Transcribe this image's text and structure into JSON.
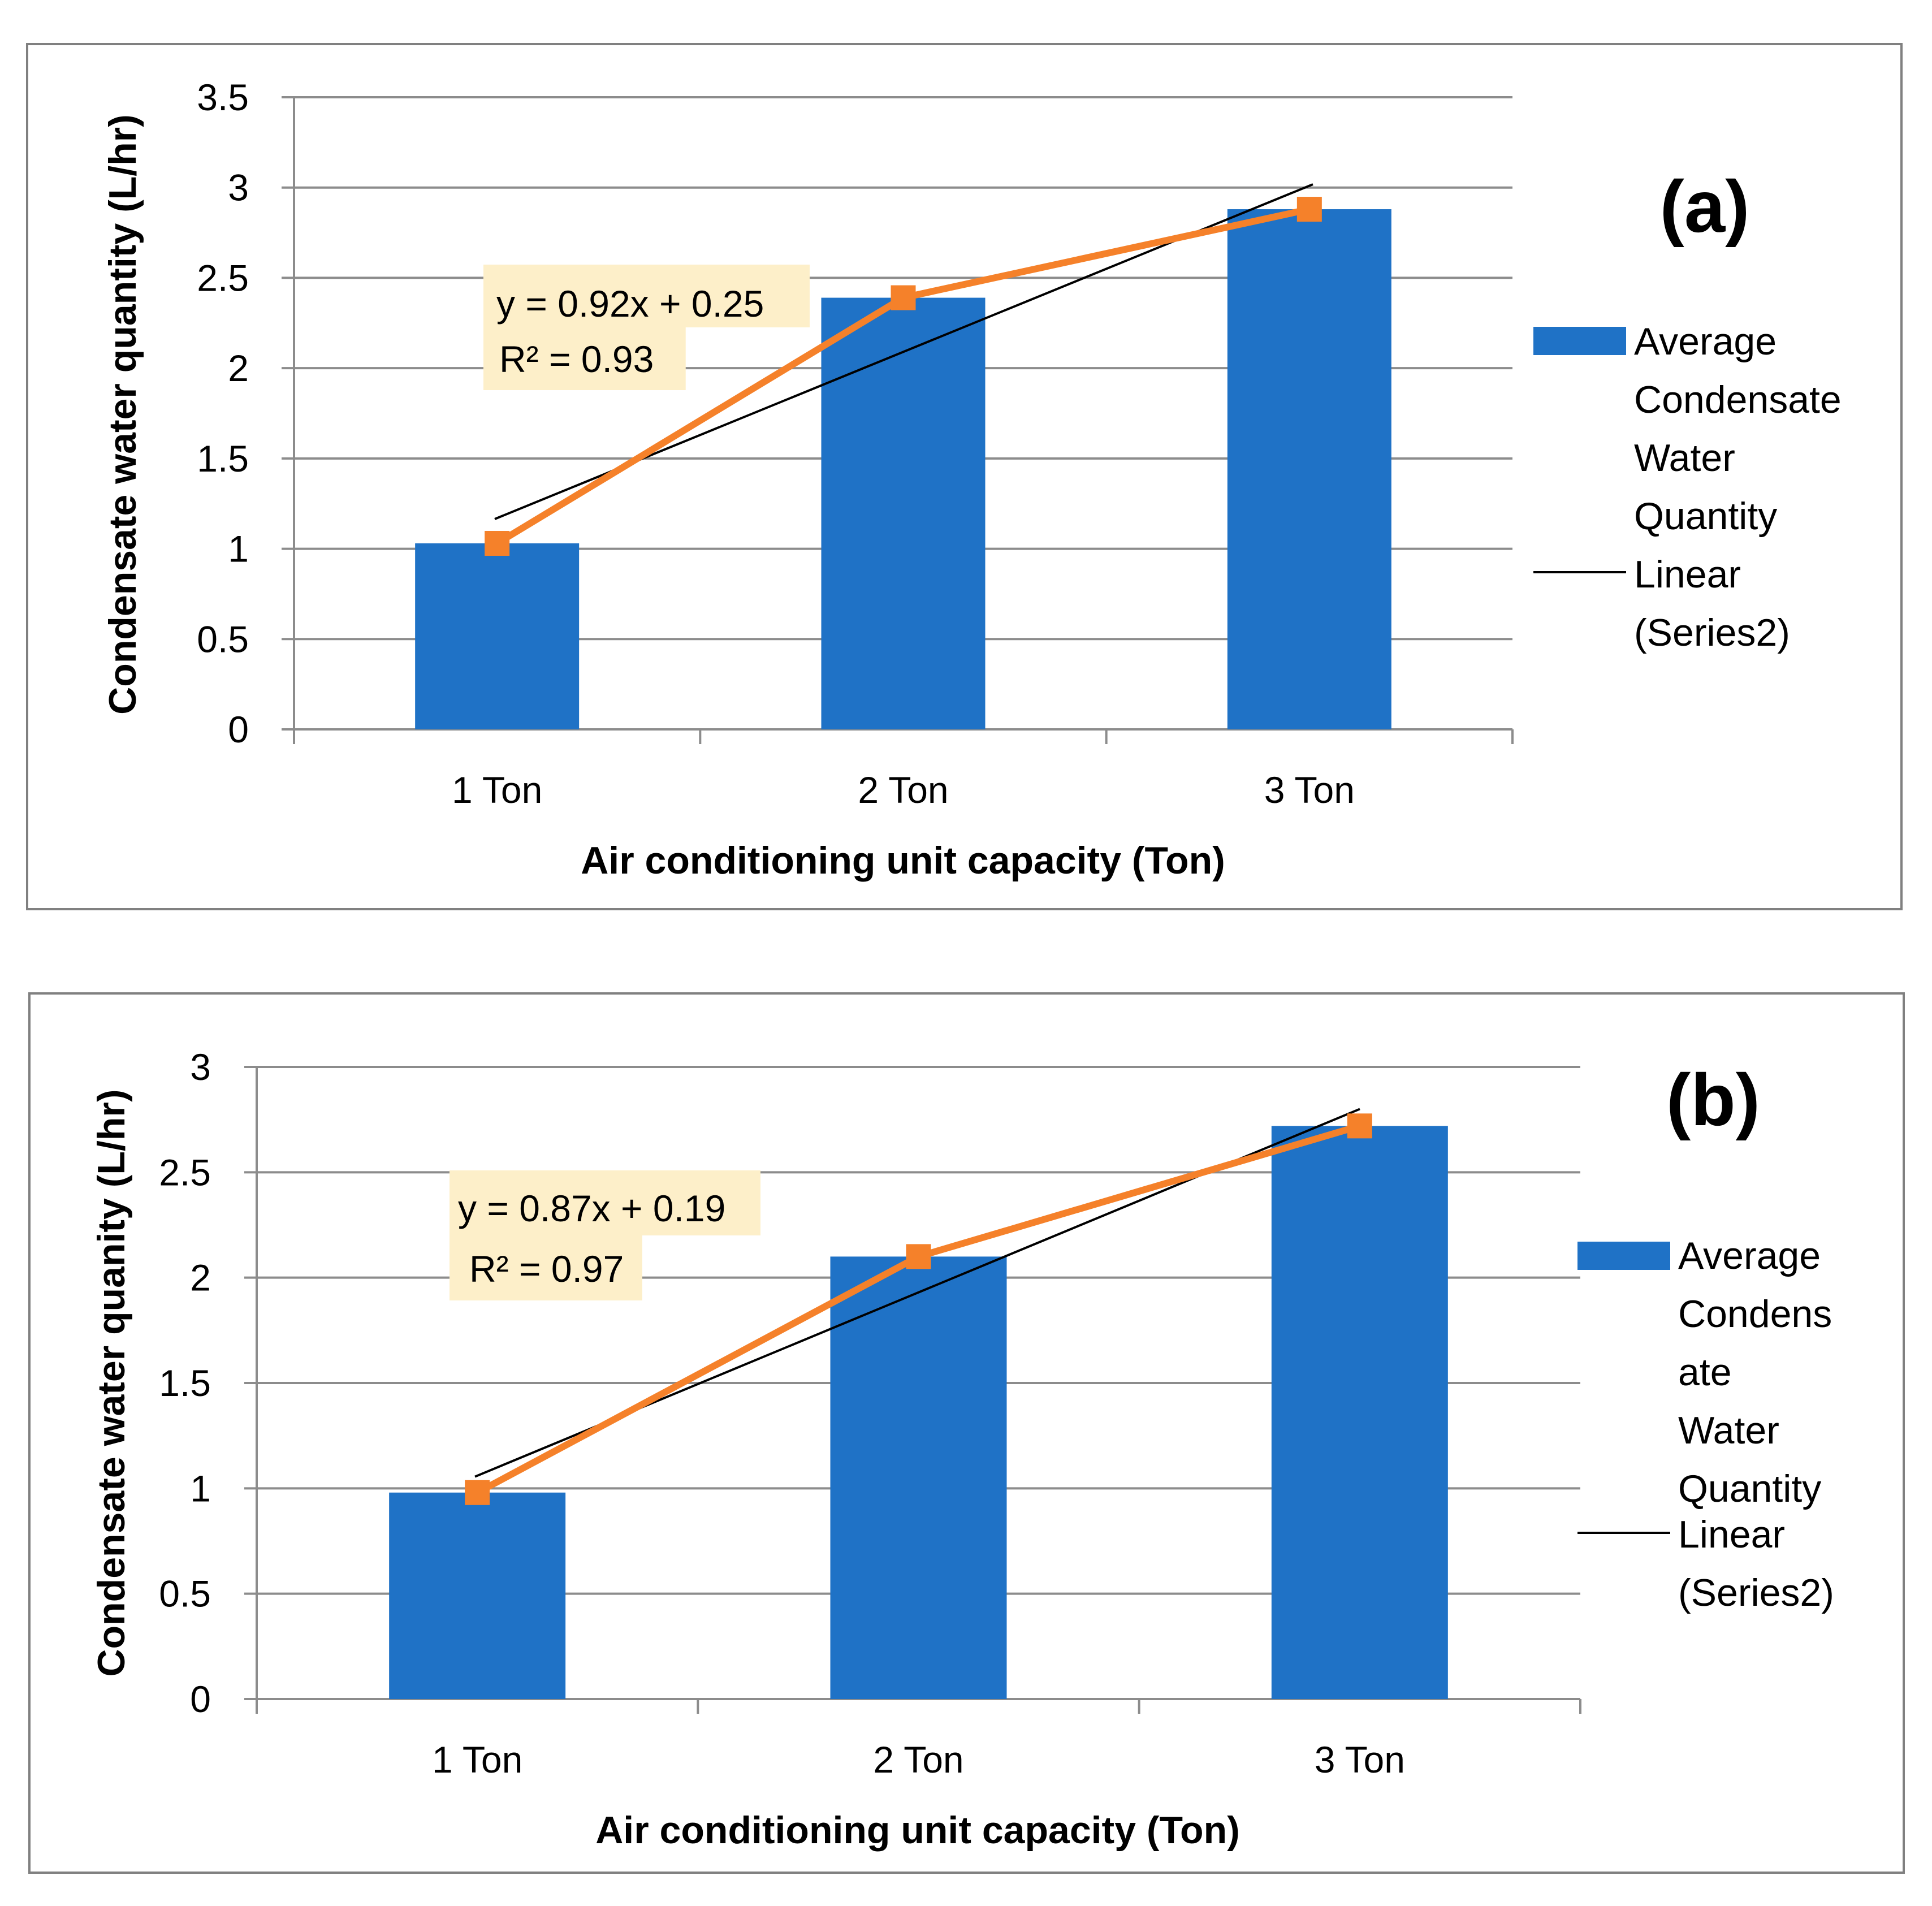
{
  "chart_data": [
    {
      "type": "bar",
      "panel_label": "(a)",
      "categories": [
        "1 Ton",
        "2 Ton",
        "3 Ton"
      ],
      "series": [
        {
          "name": "Average Condensate Water Quantity",
          "kind": "bar",
          "values": [
            1.03,
            2.39,
            2.88
          ],
          "color": "#1F72C6"
        },
        {
          "name": "Series2",
          "kind": "line-markers",
          "values": [
            1.03,
            2.39,
            2.88
          ],
          "color": "#F5812A"
        }
      ],
      "trendline": {
        "name": "Linear (Series2)",
        "slope": 0.92,
        "intercept": 0.25,
        "color": "#000000"
      },
      "equation": {
        "line1": "y = 0.92x + 0.25",
        "line2": "R² = 0.93"
      },
      "xlabel": "Air conditioning unit capacity (Ton)",
      "ylabel": "Condensate water quantity (L/hr)",
      "ylim": [
        0,
        3.5
      ],
      "ystep": 0.5,
      "yticks": [
        "0",
        "0.5",
        "1",
        "1.5",
        "2",
        "2.5",
        "3",
        "3.5"
      ],
      "legend": {
        "position": "right",
        "bar_label_lines": [
          "Average",
          "Condensate",
          "Water",
          "Quantity"
        ],
        "line_label_lines": [
          "Linear",
          "(Series2)"
        ]
      },
      "grid": true
    },
    {
      "type": "bar",
      "panel_label": "(b)",
      "categories": [
        "1 Ton",
        "2 Ton",
        "3 Ton"
      ],
      "series": [
        {
          "name": "Average Condensate Water Quantity",
          "kind": "bar",
          "values": [
            0.98,
            2.1,
            2.72
          ],
          "color": "#1F72C6"
        },
        {
          "name": "Series2",
          "kind": "line-markers",
          "values": [
            0.98,
            2.1,
            2.72
          ],
          "color": "#F5812A"
        }
      ],
      "trendline": {
        "name": "Linear (Series2)",
        "slope": 0.87,
        "intercept": 0.19,
        "color": "#000000"
      },
      "equation": {
        "line1": "y = 0.87x + 0.19",
        "line2": "R² = 0.97"
      },
      "xlabel": "Air conditioning unit capacity (Ton)",
      "ylabel": "Condensate water quanity (L/hr)",
      "ylim": [
        0,
        3
      ],
      "ystep": 0.5,
      "yticks": [
        "0",
        "0.5",
        "1",
        "1.5",
        "2",
        "2.5",
        "3"
      ],
      "legend": {
        "position": "right",
        "bar_label_lines": [
          "Average",
          "Condens",
          "ate",
          "Water",
          "Quantity"
        ],
        "line_label_lines": [
          "Linear",
          "(Series2)"
        ]
      },
      "grid": true
    }
  ]
}
